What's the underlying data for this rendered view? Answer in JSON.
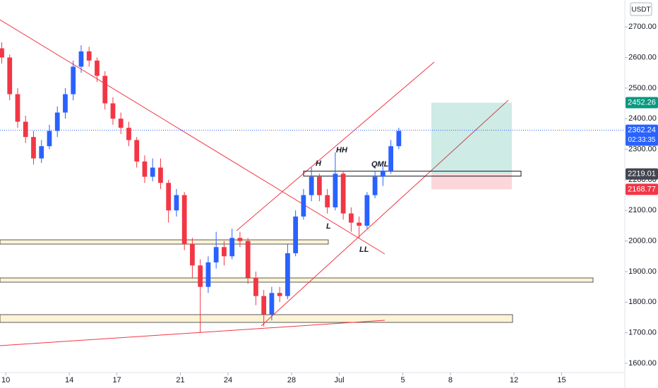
{
  "chart_data": {
    "type": "candlestick",
    "currency": "USDT",
    "x": [
      9.75,
      10.25,
      10.75,
      11.25,
      11.75,
      12.25,
      12.75,
      13.25,
      13.75,
      14.25,
      14.75,
      15.25,
      15.75,
      16.25,
      16.75,
      17.25,
      17.75,
      18.25,
      18.75,
      19.25,
      19.75,
      20.25,
      20.75,
      21.25,
      21.75,
      22.25,
      22.75,
      23.25,
      23.75,
      24.25,
      24.75,
      25.25,
      25.75,
      26.25,
      26.75,
      27.25,
      27.75,
      28.25,
      28.75,
      29.25,
      29.75,
      30.25,
      30.75,
      31.25,
      31.75,
      32.25,
      32.75,
      33.25,
      33.75,
      34.25,
      34.75
    ],
    "open": [
      2630,
      2600,
      2480,
      2390,
      2340,
      2270,
      2310,
      2360,
      2420,
      2480,
      2570,
      2620,
      2590,
      2540,
      2450,
      2400,
      2370,
      2330,
      2260,
      2210,
      2240,
      2190,
      2100,
      2150,
      1990,
      1920,
      1850,
      1930,
      1980,
      1950,
      2010,
      2000,
      1880,
      1820,
      1760,
      1830,
      1820,
      1960,
      2080,
      2150,
      2210,
      2150,
      2110,
      2220,
      2090,
      2060,
      2050,
      2150,
      2210,
      2230,
      2310
    ],
    "high": [
      2650,
      2610,
      2500,
      2410,
      2360,
      2330,
      2380,
      2440,
      2500,
      2590,
      2640,
      2635,
      2600,
      2555,
      2470,
      2420,
      2390,
      2340,
      2280,
      2270,
      2270,
      2200,
      2170,
      2160,
      2010,
      1940,
      1950,
      2030,
      2000,
      2040,
      2030,
      2010,
      1900,
      1840,
      1850,
      1850,
      1990,
      2100,
      2170,
      2240,
      2220,
      2170,
      2290,
      2230,
      2110,
      2080,
      2160,
      2230,
      2250,
      2330,
      2370
    ],
    "low": [
      2580,
      2460,
      2370,
      2320,
      2250,
      2255,
      2300,
      2340,
      2400,
      2460,
      2550,
      2570,
      2520,
      2430,
      2380,
      2350,
      2310,
      2240,
      2190,
      2195,
      2170,
      2060,
      2080,
      1970,
      1880,
      1700,
      1830,
      1910,
      1920,
      1940,
      1980,
      1860,
      1790,
      1720,
      1740,
      1800,
      1810,
      1950,
      2070,
      2130,
      2130,
      2090,
      2100,
      2070,
      2030,
      2010,
      2040,
      2140,
      2180,
      2220,
      2300
    ],
    "close": [
      2600,
      2480,
      2390,
      2340,
      2270,
      2310,
      2360,
      2420,
      2480,
      2570,
      2620,
      2590,
      2540,
      2450,
      2400,
      2370,
      2330,
      2260,
      2210,
      2240,
      2190,
      2100,
      2150,
      1990,
      1920,
      1850,
      1930,
      1980,
      1950,
      2010,
      2000,
      1880,
      1820,
      1760,
      1830,
      1820,
      1960,
      2080,
      2150,
      2210,
      2150,
      2110,
      2220,
      2090,
      2060,
      2050,
      2150,
      2210,
      2230,
      2310,
      2360
    ],
    "up_color": "#2962ff",
    "down_color": "#f23645",
    "xlim": [
      9.64,
      48.98
    ],
    "ylim": [
      1570,
      2788
    ],
    "xticks": [
      10,
      14,
      17,
      21,
      24,
      28,
      {
        "value": 31,
        "label": "Jul"
      },
      {
        "value": 35,
        "label": "5"
      },
      {
        "value": 38,
        "label": "8"
      },
      {
        "value": 42,
        "label": "12"
      },
      {
        "value": 45,
        "label": "15"
      }
    ],
    "yticks": [
      {
        "value": 1600,
        "label": "1600.00"
      },
      {
        "value": 1700,
        "label": "1700.00"
      },
      {
        "value": 1800,
        "label": "1800.00"
      },
      {
        "value": 1900,
        "label": "1900.00"
      },
      {
        "value": 2000,
        "label": "2000.00"
      },
      {
        "value": 2100,
        "label": "2100.00"
      },
      {
        "value": 2200,
        "label": "2200.00"
      },
      {
        "value": 2300,
        "label": "2300.00"
      },
      {
        "value": 2400,
        "label": "2400.00"
      },
      {
        "value": 2500,
        "label": "2500.00"
      },
      {
        "value": 2600,
        "label": "2600.00"
      },
      {
        "value": 2700,
        "label": "2700.00"
      }
    ],
    "price_labels": [
      {
        "value": 2452.26,
        "color": "#089981"
      },
      {
        "value": 2362.24,
        "color": "#2962ff",
        "countdown": "02:33:35"
      },
      {
        "value": 2219.01,
        "color": "#434651"
      },
      {
        "value": 2168.77,
        "color": "#f23645"
      }
    ],
    "annotations": [
      "H",
      "HH",
      "L",
      "LL",
      "QML"
    ]
  }
}
